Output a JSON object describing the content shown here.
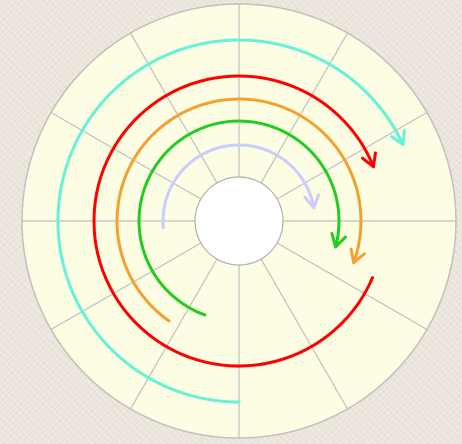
{
  "chart_data": {
    "type": "radial-bar",
    "title": "",
    "subtitle": "",
    "angular_sectors": 12,
    "angular_max": 360,
    "colors": {
      "background_panel": "#fcfde2",
      "grid": "#c0c0c0",
      "center_fill": "#ffffff"
    },
    "series": [
      {
        "color": "#ff0000",
        "start_deg": 23,
        "end_deg": 338,
        "arrow_end": true,
        "arrow_start": false
      },
      {
        "color": "#f4a030",
        "start_deg": 125,
        "end_deg": 380,
        "arrow_end": true,
        "arrow_start": false
      },
      {
        "color": "#22cc22",
        "start_deg": 110,
        "end_deg": 375,
        "arrow_end": true,
        "arrow_start": false
      },
      {
        "color": "#ccccff",
        "start_deg": 175,
        "end_deg": 350,
        "arrow_end": true,
        "arrow_start": false
      },
      {
        "color": "#66f2d8",
        "start_deg": 90,
        "end_deg": 335,
        "arrow_end": true,
        "arrow_start": false
      }
    ]
  }
}
